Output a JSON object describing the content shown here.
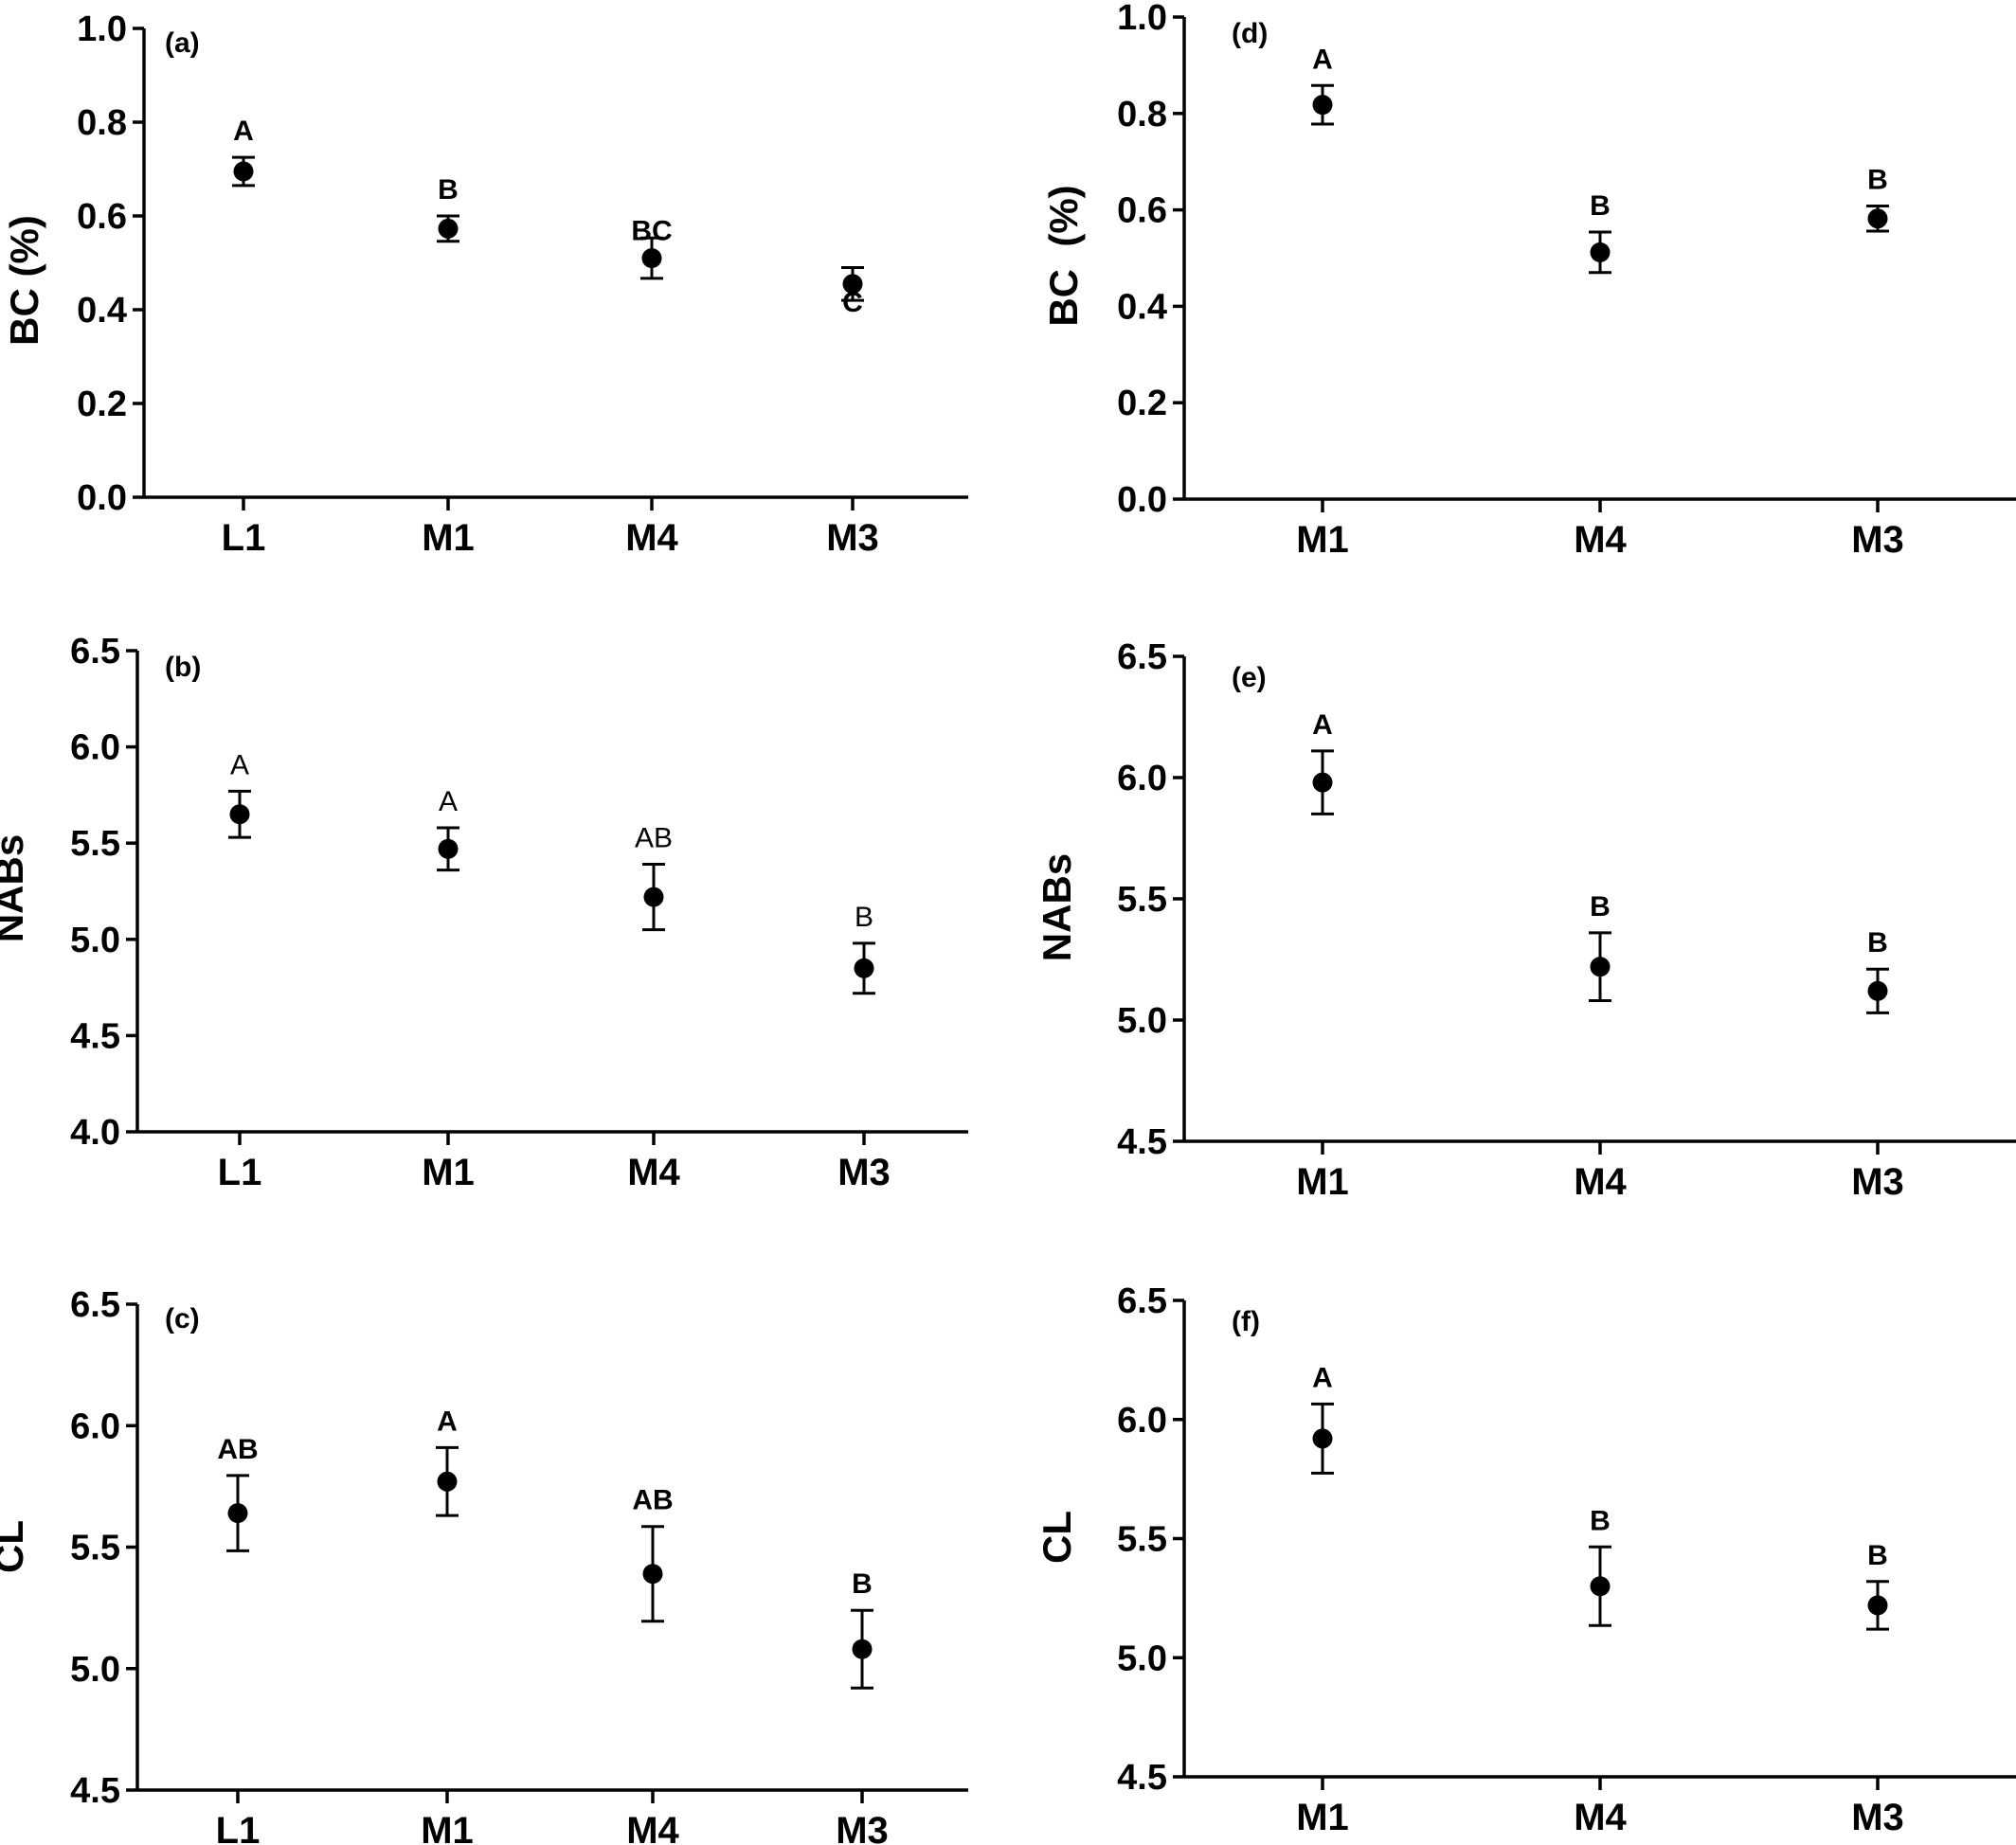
{
  "chart_data": [
    {
      "panel": "(a)",
      "type": "scatter",
      "error_bars": true,
      "ylabel": "BC (%)",
      "xlabel": "",
      "ylim": [
        0.0,
        1.0
      ],
      "yticks": [
        "0.0",
        "0.2",
        "0.4",
        "0.6",
        "0.8",
        "1.0"
      ],
      "yticks_values": [
        0.0,
        0.2,
        0.4,
        0.6,
        0.8,
        1.0
      ],
      "categories": [
        "L1",
        "M1",
        "M4",
        "M3"
      ],
      "values": [
        0.695,
        0.573,
        0.51,
        0.455
      ],
      "errors": [
        0.03,
        0.027,
        0.043,
        0.035
      ],
      "significance": [
        "A",
        "B",
        "BC",
        "C"
      ],
      "significance_bold": true
    },
    {
      "panel": "(b)",
      "type": "scatter",
      "error_bars": true,
      "ylabel": "NABs",
      "xlabel": "",
      "ylim": [
        4.0,
        6.5
      ],
      "yticks": [
        "4.0",
        "4.5",
        "5.0",
        "5.5",
        "6.0",
        "6.5"
      ],
      "yticks_values": [
        4.0,
        4.5,
        5.0,
        5.5,
        6.0,
        6.5
      ],
      "categories": [
        "L1",
        "M1",
        "M4",
        "M3"
      ],
      "values": [
        5.65,
        5.47,
        5.22,
        4.85
      ],
      "errors": [
        0.12,
        0.11,
        0.17,
        0.13
      ],
      "significance": [
        "A",
        "A",
        "AB",
        "B"
      ],
      "significance_bold": false
    },
    {
      "panel": "(c)",
      "type": "scatter",
      "error_bars": true,
      "ylabel": "CL",
      "xlabel": "",
      "ylim": [
        4.5,
        6.5
      ],
      "yticks": [
        "4.5",
        "5.0",
        "5.5",
        "6.0",
        "6.5"
      ],
      "yticks_values": [
        4.5,
        5.0,
        5.5,
        6.0,
        6.5
      ],
      "categories": [
        "L1",
        "M1",
        "M4",
        "M3"
      ],
      "values": [
        5.64,
        5.77,
        5.39,
        5.08
      ],
      "errors": [
        0.155,
        0.14,
        0.195,
        0.16
      ],
      "significance": [
        "AB",
        "A",
        "AB",
        "B"
      ],
      "significance_bold": true
    },
    {
      "panel": "(d)",
      "type": "scatter",
      "error_bars": true,
      "ylabel": "BC  (%)",
      "xlabel": "",
      "ylim": [
        0.0,
        1.0
      ],
      "yticks": [
        "0.0",
        "0.2",
        "0.4",
        "0.6",
        "0.8",
        "1.0"
      ],
      "yticks_values": [
        0.0,
        0.2,
        0.4,
        0.6,
        0.8,
        1.0
      ],
      "categories": [
        "M1",
        "M4",
        "M3"
      ],
      "values": [
        0.818,
        0.512,
        0.582
      ],
      "errors": [
        0.04,
        0.042,
        0.026
      ],
      "significance": [
        "A",
        "B",
        "B"
      ],
      "significance_bold": true
    },
    {
      "panel": "(e)",
      "type": "scatter",
      "error_bars": true,
      "ylabel": "NABs",
      "xlabel": "",
      "ylim": [
        4.5,
        6.5
      ],
      "yticks": [
        "4.5",
        "5.0",
        "5.5",
        "6.0",
        "6.5"
      ],
      "yticks_values": [
        4.5,
        5.0,
        5.5,
        6.0,
        6.5
      ],
      "categories": [
        "M1",
        "M4",
        "M3"
      ],
      "values": [
        5.98,
        5.22,
        5.12
      ],
      "errors": [
        0.13,
        0.14,
        0.09
      ],
      "significance": [
        "A",
        "B",
        "B"
      ],
      "significance_bold": true
    },
    {
      "panel": "(f)",
      "type": "scatter",
      "error_bars": true,
      "ylabel": "CL",
      "xlabel": "",
      "ylim": [
        4.5,
        6.5
      ],
      "yticks": [
        "4.5",
        "5.0",
        "5.5",
        "6.0",
        "6.5"
      ],
      "yticks_values": [
        4.5,
        5.0,
        5.5,
        6.0,
        6.5
      ],
      "categories": [
        "M1",
        "M4",
        "M3"
      ],
      "values": [
        5.92,
        5.3,
        5.22
      ],
      "errors": [
        0.145,
        0.165,
        0.1
      ],
      "significance": [
        "A",
        "B",
        "B"
      ],
      "significance_bold": true
    }
  ]
}
